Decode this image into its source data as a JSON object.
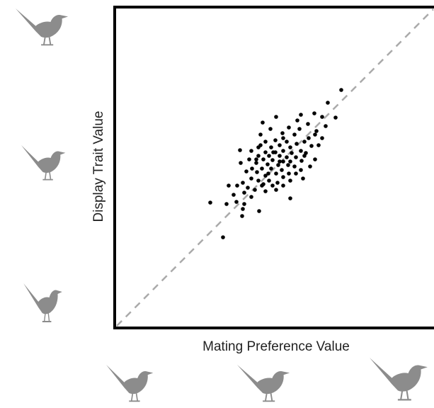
{
  "chart_data": {
    "type": "scatter",
    "x_label": "Mating Preference Value",
    "y_label": "Display Trait Value",
    "color": "#000000",
    "xlim": [
      0,
      450
    ],
    "ylim": [
      0,
      453
    ],
    "series": [
      {
        "x": [
          320,
          301,
          312,
          293,
          282,
          263,
          228,
          209,
          273,
          298,
          246,
          220,
          261,
          237,
          206,
          254,
          283,
          274,
          293,
          227,
          213,
          243,
          268,
          257,
          233,
          203,
          221,
          248,
          278,
          288,
          177,
          193,
          238,
          263,
          213,
          227,
          250,
          270,
          203,
          218,
          233,
          243,
          256,
          190,
          210,
          223,
          238,
          248,
          264,
          283,
          178,
          200,
          216,
          231,
          245,
          254,
          194,
          208,
          221,
          236,
          276,
          263,
          186,
          201,
          228,
          246,
          256,
          213,
          238,
          193,
          203,
          218,
          230,
          248,
          266,
          181,
          208,
          223,
          238,
          173,
          188,
          161,
          198,
          213,
          228,
          183,
          168,
          193,
          248,
          158,
          172,
          183,
          135,
          181,
          204,
          180,
          153,
          200,
          233,
          217,
          268,
          285,
          206,
          258,
          224,
          238,
          210
        ],
        "values": [
          336,
          318,
          297,
          298,
          303,
          301,
          298,
          290,
          288,
          285,
          283,
          281,
          281,
          275,
          273,
          273,
          273,
          268,
          268,
          265,
          263,
          263,
          263,
          260,
          258,
          255,
          255,
          255,
          257,
          258,
          251,
          250,
          250,
          250,
          248,
          248,
          247,
          247,
          243,
          243,
          243,
          241,
          241,
          238,
          238,
          237,
          235,
          235,
          236,
          238,
          233,
          233,
          231,
          230,
          230,
          228,
          225,
          225,
          225,
          223,
          228,
          223,
          221,
          220,
          218,
          218,
          218,
          215,
          213,
          211,
          208,
          208,
          205,
          208,
          211,
          205,
          201,
          201,
          201,
          201,
          198,
          201,
          195,
          193,
          195,
          191,
          188,
          185,
          183,
          175,
          178,
          175,
          177,
          168,
          165,
          158,
          128,
          238,
          235,
          218,
          243,
          278,
          258,
          293,
          248,
          268,
          203
        ]
      }
    ]
  }
}
